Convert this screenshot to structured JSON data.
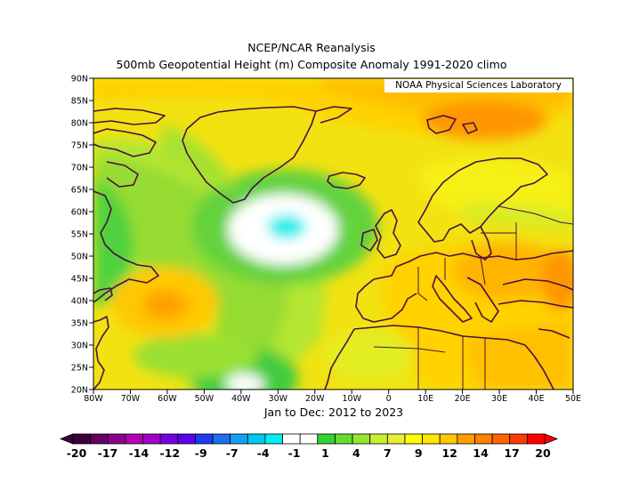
{
  "titles": {
    "line1": "NCEP/NCAR Reanalysis",
    "line2": "500mb Geopotential Height (m) Composite Anomaly 1991-2020 climo"
  },
  "credit": "NOAA Physical Sciences Laboratory",
  "period": "Jan to Dec: 2012 to 2023",
  "map": {
    "lon_range": [
      -80,
      50
    ],
    "lat_range": [
      20,
      90
    ],
    "lon_ticks": [
      "80W",
      "70W",
      "60W",
      "50W",
      "40W",
      "30W",
      "20W",
      "10W",
      "0",
      "10E",
      "20E",
      "30E",
      "40E",
      "50E"
    ],
    "lat_ticks": [
      "90N",
      "85N",
      "80N",
      "75N",
      "70N",
      "65N",
      "60N",
      "55N",
      "50N",
      "45N",
      "40N",
      "35N",
      "30N",
      "25N",
      "20N"
    ]
  },
  "colorbar": {
    "min_label": "-20",
    "max_label": "20",
    "labels": [
      "-20",
      "-17",
      "-14",
      "-12",
      "-9",
      "-7",
      "-4",
      "-1",
      "1",
      "4",
      "7",
      "9",
      "12",
      "14",
      "17",
      "20"
    ],
    "colors": [
      "#3c003c",
      "#640064",
      "#8c008c",
      "#b400b4",
      "#a000c8",
      "#7800dc",
      "#5a00f0",
      "#1e3cf0",
      "#1e6ef0",
      "#14a0f0",
      "#00c8f0",
      "#00f0f0",
      "#ffffff",
      "#ffffff",
      "#32d232",
      "#64dc32",
      "#96e632",
      "#c8f032",
      "#e6f032",
      "#ffff00",
      "#ffe600",
      "#ffc800",
      "#ffa000",
      "#ff8200",
      "#ff6400",
      "#ff3c00",
      "#ff0000"
    ]
  }
}
